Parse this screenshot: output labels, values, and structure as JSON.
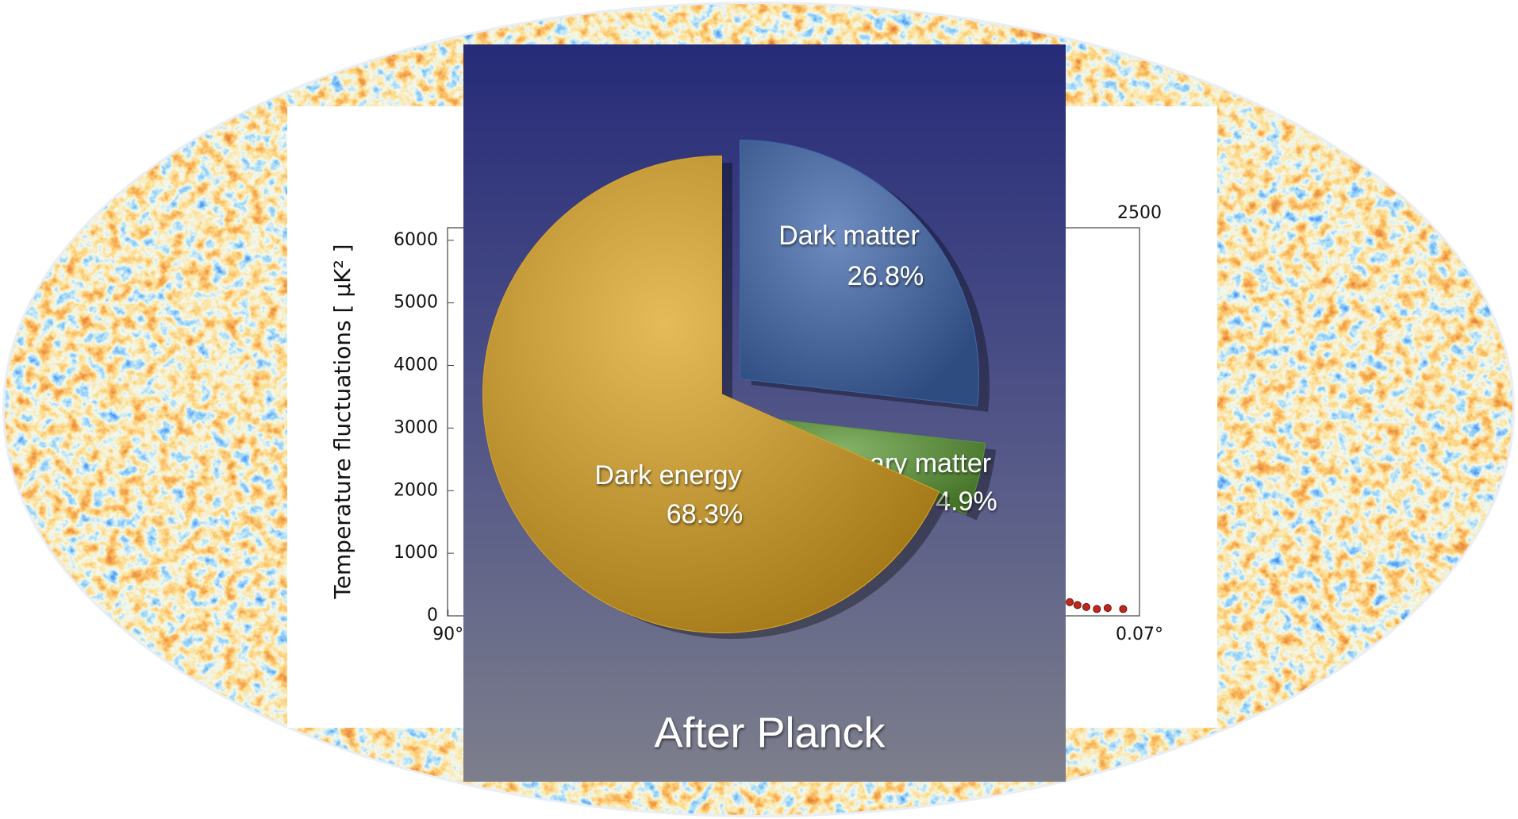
{
  "chart_data": [
    {
      "type": "scatter",
      "y_label": "Temperature fluctuations [ μK² ]",
      "x": [
        2248,
        2276,
        2308,
        2346,
        2385,
        2441
      ],
      "values": [
        219,
        172,
        141,
        109,
        125,
        109
      ],
      "color": "#c0271e",
      "xlim": [
        0,
        2500
      ],
      "ylim": [
        0,
        6200
      ],
      "yticks": [
        0,
        1000,
        2000,
        3000,
        4000,
        5000,
        6000
      ],
      "xticks": [
        2500
      ],
      "x2ticks": [
        {
          "value": 2,
          "label": "90°"
        },
        {
          "value": 2500,
          "label": "0.07°"
        }
      ]
    },
    {
      "type": "pie",
      "title": "After Planck",
      "categories": [
        "Dark matter",
        "Ordinary matter",
        "Dark energy"
      ],
      "values": [
        26.8,
        4.9,
        68.3
      ],
      "value_labels": [
        "26.8%",
        "4.9%",
        "68.3%"
      ],
      "colors": [
        "#3f66ac",
        "#5c9a36",
        "#dca423"
      ]
    }
  ]
}
